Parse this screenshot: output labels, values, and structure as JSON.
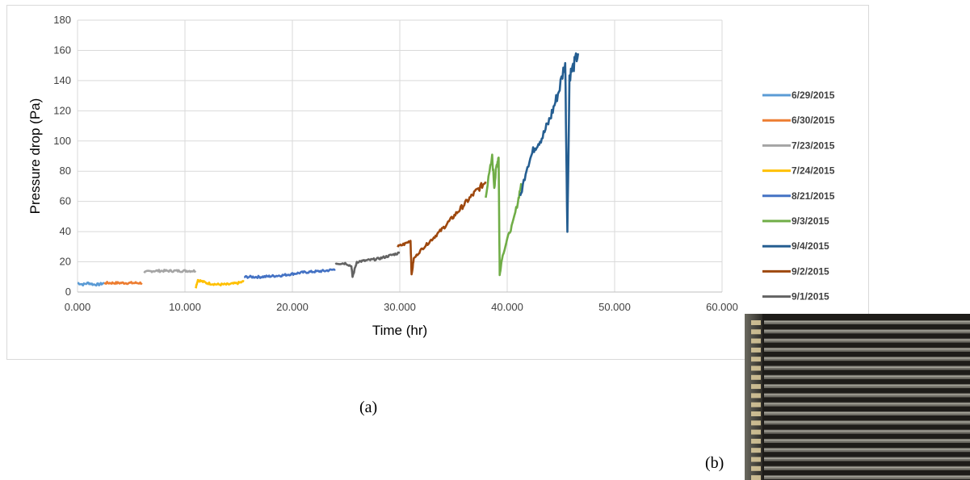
{
  "panel_labels": {
    "a": "(a)",
    "b": "(b)"
  },
  "chart_data": {
    "type": "line",
    "title": "",
    "xlabel": "Time (hr)",
    "ylabel": "Pressure drop (Pa)",
    "xlim": [
      0,
      60
    ],
    "ylim": [
      0,
      180
    ],
    "x_ticks": [
      "0.000",
      "10.000",
      "20.000",
      "30.000",
      "40.000",
      "50.000",
      "60.000"
    ],
    "y_ticks": [
      "0",
      "20",
      "40",
      "60",
      "80",
      "100",
      "120",
      "140",
      "160",
      "180"
    ],
    "grid": true,
    "legend_position": "right",
    "series": [
      {
        "name": "6/29/2015",
        "color": "#5B9BD5",
        "x": [
          0,
          0.5,
          1.0,
          1.5,
          2.0,
          2.5
        ],
        "y": [
          6,
          5,
          6,
          5,
          5,
          6
        ]
      },
      {
        "name": "6/30/2015",
        "color": "#ED7D31",
        "x": [
          2.5,
          3.5,
          4.5,
          5.5,
          6.0
        ],
        "y": [
          6,
          6,
          6,
          6,
          6
        ]
      },
      {
        "name": "7/23/2015",
        "color": "#A5A5A5",
        "x": [
          6.2,
          7.0,
          8.0,
          9.0,
          10.0,
          11.0
        ],
        "y": [
          13,
          14,
          14,
          14,
          14,
          14
        ]
      },
      {
        "name": "7/24/2015",
        "color": "#FFC000",
        "x": [
          11.0,
          11.2,
          12.0,
          13.0,
          14.0,
          15.0,
          15.5
        ],
        "y": [
          3,
          8,
          6,
          5,
          5,
          6,
          7
        ]
      },
      {
        "name": "8/21/2015",
        "color": "#4472C4",
        "x": [
          15.5,
          17.0,
          19.0,
          21.0,
          23.0,
          24.0
        ],
        "y": [
          10,
          10,
          11,
          13,
          14,
          15
        ]
      },
      {
        "name": "9/3/2015",
        "color": "#70AD47",
        "x": [
          38.0,
          38.6,
          38.8,
          39.0,
          39.2,
          39.3,
          39.5,
          40.0,
          40.5,
          41.0,
          41.3
        ],
        "y": [
          64,
          89,
          70,
          83,
          90,
          11,
          22,
          35,
          45,
          60,
          72
        ]
      },
      {
        "name": "9/4/2015",
        "color": "#255E91",
        "x": [
          41.2,
          41.8,
          42.5,
          43.3,
          44.0,
          44.8,
          45.4,
          45.6,
          45.8,
          46.2,
          46.6
        ],
        "y": [
          62,
          82,
          95,
          103,
          115,
          133,
          152,
          40,
          143,
          150,
          158
        ]
      },
      {
        "name": "9/2/2015",
        "color": "#9E480E",
        "x": [
          29.8,
          30.5,
          31.0,
          31.1,
          31.3,
          32.0,
          33.0,
          34.0,
          35.0,
          36.0,
          37.0,
          38.0
        ],
        "y": [
          30,
          32,
          34,
          11,
          22,
          28,
          35,
          42,
          50,
          58,
          66,
          73
        ]
      },
      {
        "name": "9/1/2015",
        "color": "#636363",
        "x": [
          24.0,
          25.0,
          25.5,
          25.6,
          26.0,
          27.0,
          28.0,
          29.0,
          30.0
        ],
        "y": [
          19,
          19,
          17,
          10,
          20,
          21,
          22,
          24,
          26
        ]
      }
    ]
  }
}
